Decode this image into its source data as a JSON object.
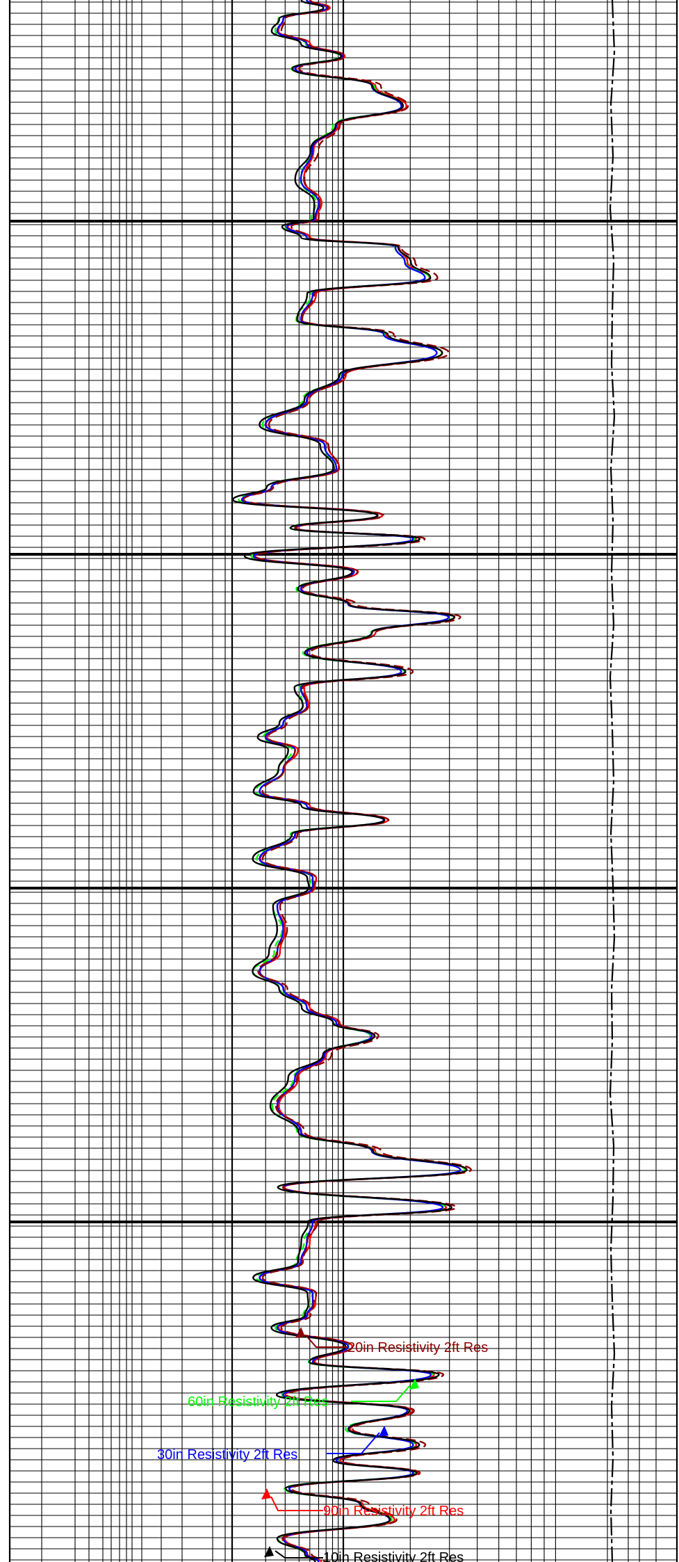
{
  "chart_data": {
    "type": "line",
    "title": "",
    "xlabel": "",
    "ylabel": "",
    "x_scale": "log",
    "grid": "on",
    "series": [
      {
        "name": "90in Resistivity 2ft Res",
        "color": "#ff0000",
        "dash": "",
        "label_point": [
          0,
          146
        ]
      },
      {
        "name": "60in Resistivity 2ft Res",
        "color": "#00ff00",
        "dash": "10,6",
        "label_point": [
          0,
          80
        ]
      },
      {
        "name": "30in Resistivity 2ft Res",
        "color": "#0000ff",
        "dash": "",
        "label_point": [
          0,
          100
        ]
      },
      {
        "name": "20in Resistivity 2ft Res",
        "color": "#8b0000",
        "dash": "14,6",
        "label_point": [
          0,
          100
        ]
      },
      {
        "name": "10in Resistivity 2ft Res",
        "color": "#000000",
        "dash": "",
        "label_point": [
          0,
          100
        ]
      }
    ],
    "profile": [
      {
        "t": 0.0,
        "v": -0.05
      },
      {
        "t": 0.005,
        "v": 0.12
      },
      {
        "t": 0.012,
        "v": -0.25
      },
      {
        "t": 0.02,
        "v": -0.3
      },
      {
        "t": 0.028,
        "v": -0.05
      },
      {
        "t": 0.036,
        "v": 0.25
      },
      {
        "t": 0.044,
        "v": -0.15
      },
      {
        "t": 0.055,
        "v": 0.5
      },
      {
        "t": 0.068,
        "v": 0.75
      },
      {
        "t": 0.08,
        "v": 0.2
      },
      {
        "t": 0.095,
        "v": 0.0
      },
      {
        "t": 0.115,
        "v": -0.1
      },
      {
        "t": 0.13,
        "v": 0.05
      },
      {
        "t": 0.14,
        "v": 0.02
      },
      {
        "t": 0.145,
        "v": -0.22
      },
      {
        "t": 0.152,
        "v": -0.05
      },
      {
        "t": 0.158,
        "v": 0.7
      },
      {
        "t": 0.168,
        "v": 0.78
      },
      {
        "t": 0.178,
        "v": 0.95
      },
      {
        "t": 0.188,
        "v": 0.0
      },
      {
        "t": 0.205,
        "v": -0.1
      },
      {
        "t": 0.214,
        "v": 0.6
      },
      {
        "t": 0.226,
        "v": 1.05
      },
      {
        "t": 0.24,
        "v": 0.25
      },
      {
        "t": 0.256,
        "v": -0.05
      },
      {
        "t": 0.272,
        "v": -0.4
      },
      {
        "t": 0.285,
        "v": 0.1
      },
      {
        "t": 0.3,
        "v": 0.2
      },
      {
        "t": 0.312,
        "v": -0.35
      },
      {
        "t": 0.32,
        "v": -0.6
      },
      {
        "t": 0.33,
        "v": 0.55
      },
      {
        "t": 0.338,
        "v": -0.15
      },
      {
        "t": 0.345,
        "v": 0.85
      },
      {
        "t": 0.356,
        "v": -0.5
      },
      {
        "t": 0.366,
        "v": 0.35
      },
      {
        "t": 0.377,
        "v": -0.1
      },
      {
        "t": 0.387,
        "v": 0.3
      },
      {
        "t": 0.395,
        "v": 1.15
      },
      {
        "t": 0.405,
        "v": 0.5
      },
      {
        "t": 0.418,
        "v": -0.05
      },
      {
        "t": 0.43,
        "v": 0.75
      },
      {
        "t": 0.44,
        "v": -0.1
      },
      {
        "t": 0.452,
        "v": -0.05
      },
      {
        "t": 0.463,
        "v": -0.25
      },
      {
        "t": 0.472,
        "v": -0.4
      },
      {
        "t": 0.48,
        "v": -0.15
      },
      {
        "t": 0.493,
        "v": -0.25
      },
      {
        "t": 0.507,
        "v": -0.45
      },
      {
        "t": 0.516,
        "v": -0.05
      },
      {
        "t": 0.525,
        "v": 0.6
      },
      {
        "t": 0.534,
        "v": -0.15
      },
      {
        "t": 0.55,
        "v": -0.45
      },
      {
        "t": 0.562,
        "v": 0.0
      },
      {
        "t": 0.568,
        "v": 0.0
      },
      {
        "t": 0.58,
        "v": -0.3
      },
      {
        "t": 0.595,
        "v": -0.25
      },
      {
        "t": 0.61,
        "v": -0.3
      },
      {
        "t": 0.622,
        "v": -0.45
      },
      {
        "t": 0.633,
        "v": -0.25
      },
      {
        "t": 0.645,
        "v": -0.05
      },
      {
        "t": 0.655,
        "v": 0.2
      },
      {
        "t": 0.663,
        "v": 0.5
      },
      {
        "t": 0.675,
        "v": 0.1
      },
      {
        "t": 0.69,
        "v": -0.15
      },
      {
        "t": 0.708,
        "v": -0.3
      },
      {
        "t": 0.725,
        "v": -0.1
      },
      {
        "t": 0.737,
        "v": 0.5
      },
      {
        "t": 0.749,
        "v": 1.25
      },
      {
        "t": 0.76,
        "v": -0.25
      },
      {
        "t": 0.773,
        "v": 1.1
      },
      {
        "t": 0.782,
        "v": 0.0
      },
      {
        "t": 0.795,
        "v": -0.05
      },
      {
        "t": 0.808,
        "v": -0.1
      },
      {
        "t": 0.818,
        "v": -0.45
      },
      {
        "t": 0.828,
        "v": 0.0
      },
      {
        "t": 0.835,
        "v": 0.0
      },
      {
        "t": 0.842,
        "v": -0.05
      },
      {
        "t": 0.85,
        "v": -0.3
      },
      {
        "t": 0.862,
        "v": 0.3
      },
      {
        "t": 0.872,
        "v": 0.0
      },
      {
        "t": 0.88,
        "v": 1.0
      },
      {
        "t": 0.893,
        "v": -0.25
      },
      {
        "t": 0.903,
        "v": 0.8
      },
      {
        "t": 0.915,
        "v": 0.3
      },
      {
        "t": 0.925,
        "v": 0.85
      },
      {
        "t": 0.935,
        "v": 0.2
      },
      {
        "t": 0.943,
        "v": 0.85
      },
      {
        "t": 0.953,
        "v": -0.2
      },
      {
        "t": 0.963,
        "v": 0.4
      },
      {
        "t": 0.973,
        "v": 0.65
      },
      {
        "t": 0.985,
        "v": -0.25
      },
      {
        "t": 0.995,
        "v": -0.05
      },
      {
        "t": 1.0,
        "v": 0.05
      }
    ],
    "second_track": {
      "name": "",
      "color": "#000000",
      "dash": "26,5,6,5",
      "values": [
        0.0,
        0.3,
        -0.2,
        0.1,
        -0.3,
        0.2,
        0.0,
        -0.1,
        0.3,
        -0.2,
        0.1,
        -0.1,
        0.2,
        -0.3,
        0.0,
        0.2,
        -0.2,
        0.1,
        0.3,
        -0.1,
        0.0,
        -0.3,
        0.2,
        0.1,
        -0.2,
        0.0,
        0.3,
        -0.1,
        0.1,
        -0.2,
        0.0
      ]
    }
  }
}
